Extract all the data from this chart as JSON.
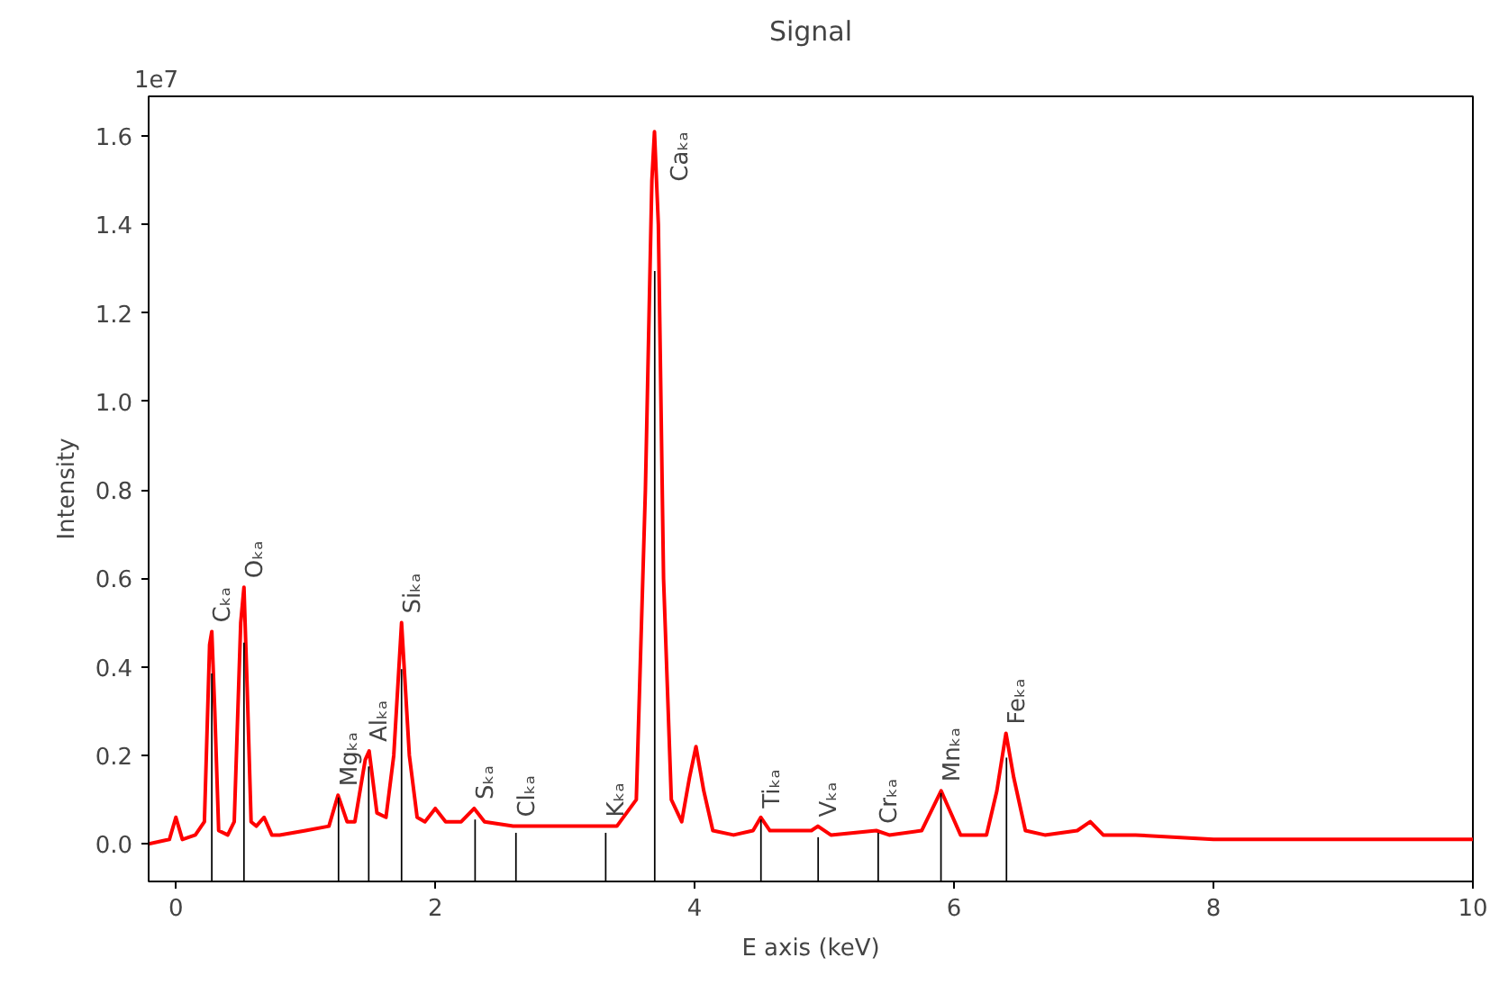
{
  "chart_data": {
    "type": "line",
    "title": "Signal",
    "xlabel": "E axis (keV)",
    "ylabel": "Intensity",
    "x": [
      -0.21,
      -0.05,
      0.0,
      0.05,
      0.15,
      0.22,
      0.26,
      0.277,
      0.3,
      0.33,
      0.4,
      0.45,
      0.5,
      0.525,
      0.55,
      0.58,
      0.62,
      0.68,
      0.74,
      0.8,
      1.0,
      1.18,
      1.25,
      1.32,
      1.38,
      1.46,
      1.49,
      1.55,
      1.62,
      1.68,
      1.74,
      1.8,
      1.86,
      1.92,
      2.0,
      2.08,
      2.2,
      2.3,
      2.38,
      2.6,
      3.0,
      3.4,
      3.55,
      3.62,
      3.67,
      3.69,
      3.72,
      3.76,
      3.82,
      3.9,
      3.96,
      4.01,
      4.07,
      4.14,
      4.3,
      4.45,
      4.51,
      4.58,
      4.9,
      4.95,
      5.05,
      5.4,
      5.5,
      5.75,
      5.85,
      5.9,
      5.96,
      6.05,
      6.25,
      6.33,
      6.4,
      6.46,
      6.55,
      6.7,
      6.95,
      7.05,
      7.15,
      7.4,
      8.0,
      9.0,
      10.0
    ],
    "series": [
      {
        "color": "#ff0000",
        "values": [
          0.0,
          0.01,
          0.06,
          0.01,
          0.02,
          0.05,
          0.45,
          0.48,
          0.3,
          0.03,
          0.02,
          0.05,
          0.5,
          0.58,
          0.35,
          0.05,
          0.04,
          0.06,
          0.02,
          0.02,
          0.03,
          0.04,
          0.11,
          0.05,
          0.05,
          0.19,
          0.21,
          0.07,
          0.06,
          0.2,
          0.5,
          0.2,
          0.06,
          0.05,
          0.08,
          0.05,
          0.05,
          0.08,
          0.05,
          0.04,
          0.04,
          0.04,
          0.1,
          0.8,
          1.5,
          1.61,
          1.4,
          0.6,
          0.1,
          0.05,
          0.15,
          0.22,
          0.12,
          0.03,
          0.02,
          0.03,
          0.06,
          0.03,
          0.03,
          0.04,
          0.02,
          0.03,
          0.02,
          0.03,
          0.09,
          0.12,
          0.08,
          0.02,
          0.02,
          0.12,
          0.25,
          0.15,
          0.03,
          0.02,
          0.03,
          0.05,
          0.02,
          0.02,
          0.01,
          0.01,
          0.01
        ]
      },
      {
        "type": "bar",
        "color": "#000000",
        "x": [
          0.277,
          0.525,
          1.254,
          1.487,
          1.74,
          2.307,
          2.622,
          3.314,
          3.692,
          4.511,
          4.952,
          5.415,
          5.899,
          6.404
        ],
        "base": [
          -0.085,
          -0.085,
          -0.085,
          -0.085,
          -0.085,
          -0.085,
          -0.085,
          -0.085,
          -0.085,
          -0.085,
          -0.085,
          -0.085,
          -0.085,
          -0.085
        ],
        "values": [
          0.47,
          0.54,
          0.19,
          0.26,
          0.48,
          0.14,
          0.11,
          0.11,
          1.38,
          0.14,
          0.1,
          0.11,
          0.2,
          0.28
        ]
      }
    ],
    "xlim": [
      -0.21,
      10.0
    ],
    "ylim": [
      -0.085,
      1.69
    ],
    "xticks": [
      0,
      2,
      4,
      6,
      8,
      10
    ],
    "yticks": [
      {
        "value": 0,
        "label": "0.0"
      },
      0.2,
      0.4,
      0.6,
      0.8,
      {
        "value": 1.0,
        "label": "1.0"
      },
      1.2,
      1.4,
      1.6
    ],
    "grid": false,
    "marker": "none",
    "line_style": "solid",
    "annotations": [
      "1e7",
      {
        "text": "Cₖₐ",
        "x": 0.277,
        "y": 0.48
      },
      {
        "text": "Oₖₐ",
        "x": 0.525,
        "y": 0.58
      },
      {
        "text": "Mgₖₐ",
        "x": 1.254,
        "y": 0.11
      },
      {
        "text": "Alₖₐ",
        "x": 1.487,
        "y": 0.21
      },
      {
        "text": "Siₖₐ",
        "x": 1.74,
        "y": 0.5
      },
      {
        "text": "Sₖₐ",
        "x": 2.307,
        "y": 0.08
      },
      {
        "text": "Clₖₐ",
        "x": 2.622,
        "y": 0.04
      },
      {
        "text": "Kₖₐ",
        "x": 3.314,
        "y": 0.04
      },
      {
        "text": "Caₖₐ",
        "x": 3.692,
        "y": 1.61
      },
      {
        "text": "Tiₖₐ",
        "x": 4.511,
        "y": 0.06
      },
      {
        "text": "Vₖₐ",
        "x": 4.952,
        "y": 0.04
      },
      {
        "text": "Crₖₐ",
        "x": 5.415,
        "y": 0.025
      },
      {
        "text": "Mnₖₐ",
        "x": 5.899,
        "y": 0.12
      },
      {
        "text": "Feₖₐ",
        "x": 6.404,
        "y": 0.25
      }
    ]
  }
}
